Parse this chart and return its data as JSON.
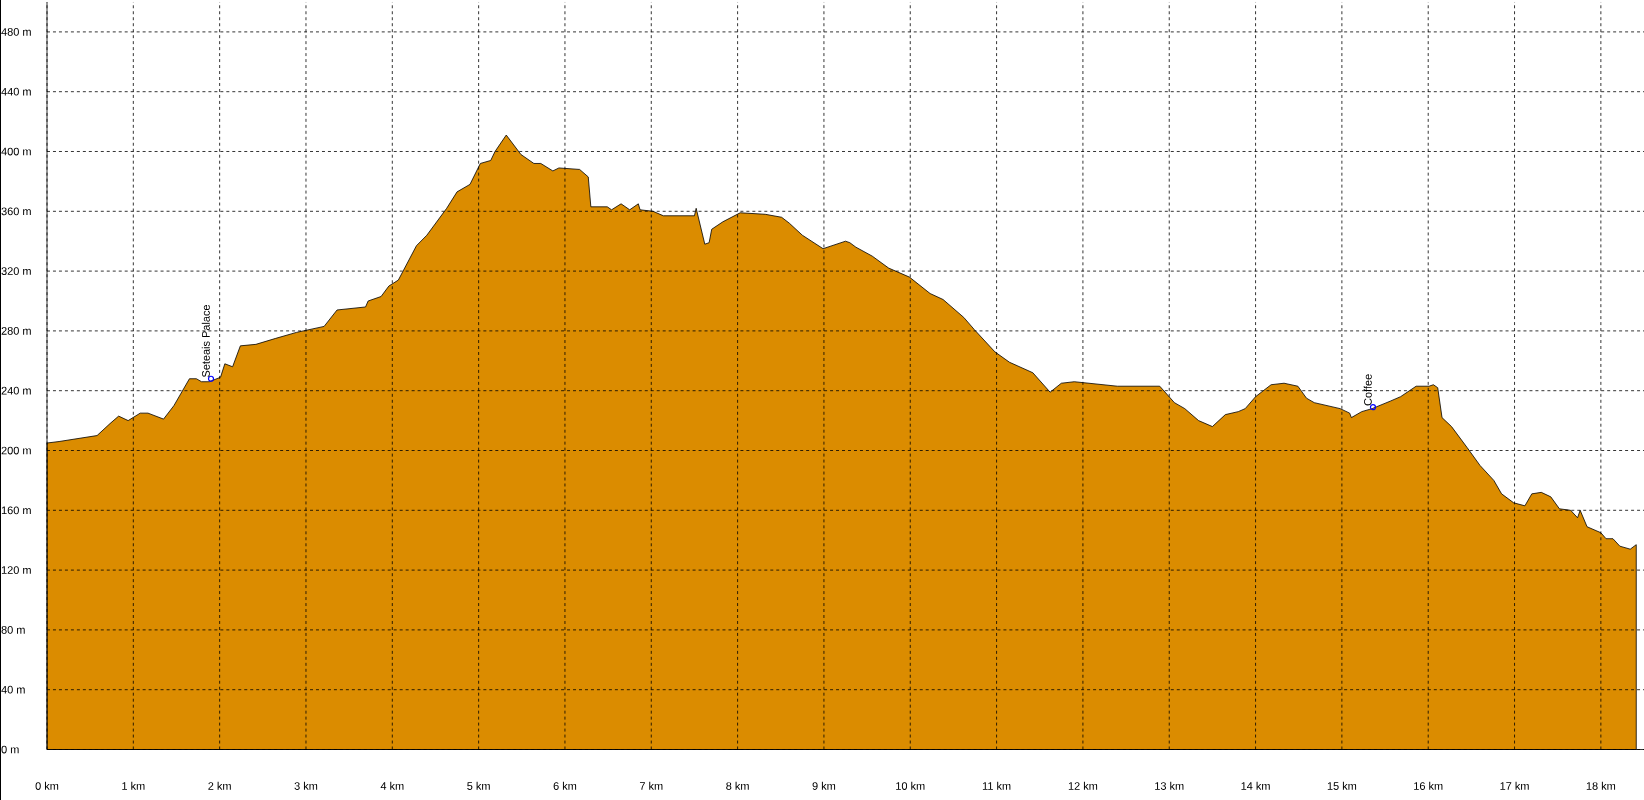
{
  "chart_data": {
    "type": "area",
    "color": "#db8c00",
    "grid": true,
    "x": [
      0,
      0.14,
      0.58,
      0.73,
      0.83,
      0.94,
      1.08,
      1.17,
      1.35,
      1.47,
      1.65,
      1.73,
      1.79,
      1.88,
      2.01,
      2.06,
      2.15,
      2.24,
      2.42,
      2.65,
      2.89,
      3.21,
      3.36,
      3.69,
      3.72,
      3.87,
      3.96,
      4.07,
      4.28,
      4.4,
      4.63,
      4.75,
      4.9,
      5.02,
      5.14,
      5.19,
      5.32,
      5.49,
      5.64,
      5.72,
      5.86,
      5.93,
      6.17,
      6.27,
      6.3,
      6.49,
      6.54,
      6.65,
      6.75,
      6.85,
      6.87,
      7.02,
      7.14,
      7.5,
      7.52,
      7.62,
      7.67,
      7.7,
      7.83,
      8.03,
      8.32,
      8.51,
      8.6,
      8.75,
      8.99,
      9.25,
      9.3,
      9.37,
      9.56,
      9.75,
      9.99,
      10.23,
      10.38,
      10.62,
      10.74,
      10.98,
      11.15,
      11.42,
      11.62,
      11.75,
      11.9,
      12.4,
      12.89,
      13.06,
      13.18,
      13.34,
      13.5,
      13.65,
      13.8,
      13.88,
      14.0,
      14.18,
      14.33,
      14.49,
      14.59,
      14.68,
      14.98,
      15.09,
      15.11,
      15.23,
      15.35,
      15.56,
      15.68,
      15.86,
      16.01,
      16.06,
      16.11,
      16.16,
      16.27,
      16.45,
      16.6,
      16.76,
      16.85,
      16.99,
      17.12,
      17.2,
      17.31,
      17.42,
      17.52,
      17.65,
      17.73,
      17.76,
      17.84,
      18.0,
      18.06,
      18.14,
      18.22,
      18.34,
      18.41
    ],
    "values": [
      205,
      206,
      210,
      218,
      223,
      220,
      225,
      225,
      221,
      230,
      248,
      248,
      246,
      246,
      249,
      258,
      256,
      270,
      271,
      275,
      279,
      283,
      294,
      296,
      300,
      303,
      310,
      314,
      337,
      344,
      362,
      373,
      378,
      392,
      394,
      400,
      411,
      398,
      392,
      392,
      387,
      389,
      388,
      383,
      363,
      363,
      361,
      365,
      361,
      365,
      361,
      360,
      357,
      357,
      362,
      338,
      339,
      348,
      353,
      359,
      358,
      356,
      352,
      344,
      335,
      340,
      339,
      336,
      330,
      322,
      316,
      305,
      301,
      289,
      281,
      266,
      259,
      252,
      239,
      245,
      246,
      243,
      243,
      232,
      228,
      220,
      216,
      224,
      226,
      228,
      236,
      244,
      245,
      243,
      235,
      232,
      228,
      225,
      222,
      226,
      228,
      233,
      236,
      243,
      243,
      244,
      242,
      222,
      216,
      202,
      190,
      180,
      171,
      165,
      163,
      171,
      172,
      169,
      161,
      160,
      155,
      160,
      149,
      145,
      141,
      141,
      136,
      134,
      137
    ],
    "xlim": [
      0,
      18.5
    ],
    "ylim": [
      0,
      500
    ],
    "xticks": [
      {
        "value": 0,
        "label": "0 km"
      },
      {
        "value": 1,
        "label": "1 km"
      },
      {
        "value": 2,
        "label": "2 km"
      },
      {
        "value": 3,
        "label": "3 km"
      },
      {
        "value": 4,
        "label": "4 km"
      },
      {
        "value": 5,
        "label": "5 km"
      },
      {
        "value": 6,
        "label": "6 km"
      },
      {
        "value": 7,
        "label": "7 km"
      },
      {
        "value": 8,
        "label": "8 km"
      },
      {
        "value": 9,
        "label": "9 km"
      },
      {
        "value": 10,
        "label": "10 km"
      },
      {
        "value": 11,
        "label": "11 km"
      },
      {
        "value": 12,
        "label": "12 km"
      },
      {
        "value": 13,
        "label": "13 km"
      },
      {
        "value": 14,
        "label": "14 km"
      },
      {
        "value": 15,
        "label": "15 km"
      },
      {
        "value": 16,
        "label": "16 km"
      },
      {
        "value": 17,
        "label": "17 km"
      },
      {
        "value": 18,
        "label": "18 km"
      }
    ],
    "yticks": [
      {
        "value": 0,
        "label": "0 m"
      },
      {
        "value": 40,
        "label": "40 m"
      },
      {
        "value": 80,
        "label": "80 m"
      },
      {
        "value": 120,
        "label": "120 m"
      },
      {
        "value": 160,
        "label": "160 m"
      },
      {
        "value": 200,
        "label": "200 m"
      },
      {
        "value": 240,
        "label": "240 m"
      },
      {
        "value": 280,
        "label": "280 m"
      },
      {
        "value": 320,
        "label": "320 m"
      },
      {
        "value": 360,
        "label": "360 m"
      },
      {
        "value": 400,
        "label": "400 m"
      },
      {
        "value": 440,
        "label": "440 m"
      },
      {
        "value": 480,
        "label": "480 m"
      }
    ],
    "annotations": [
      {
        "text": "Seteais Palace",
        "x": 1.9,
        "y": 248
      },
      {
        "text": "Coffee",
        "x": 15.36,
        "y": 229
      }
    ]
  }
}
